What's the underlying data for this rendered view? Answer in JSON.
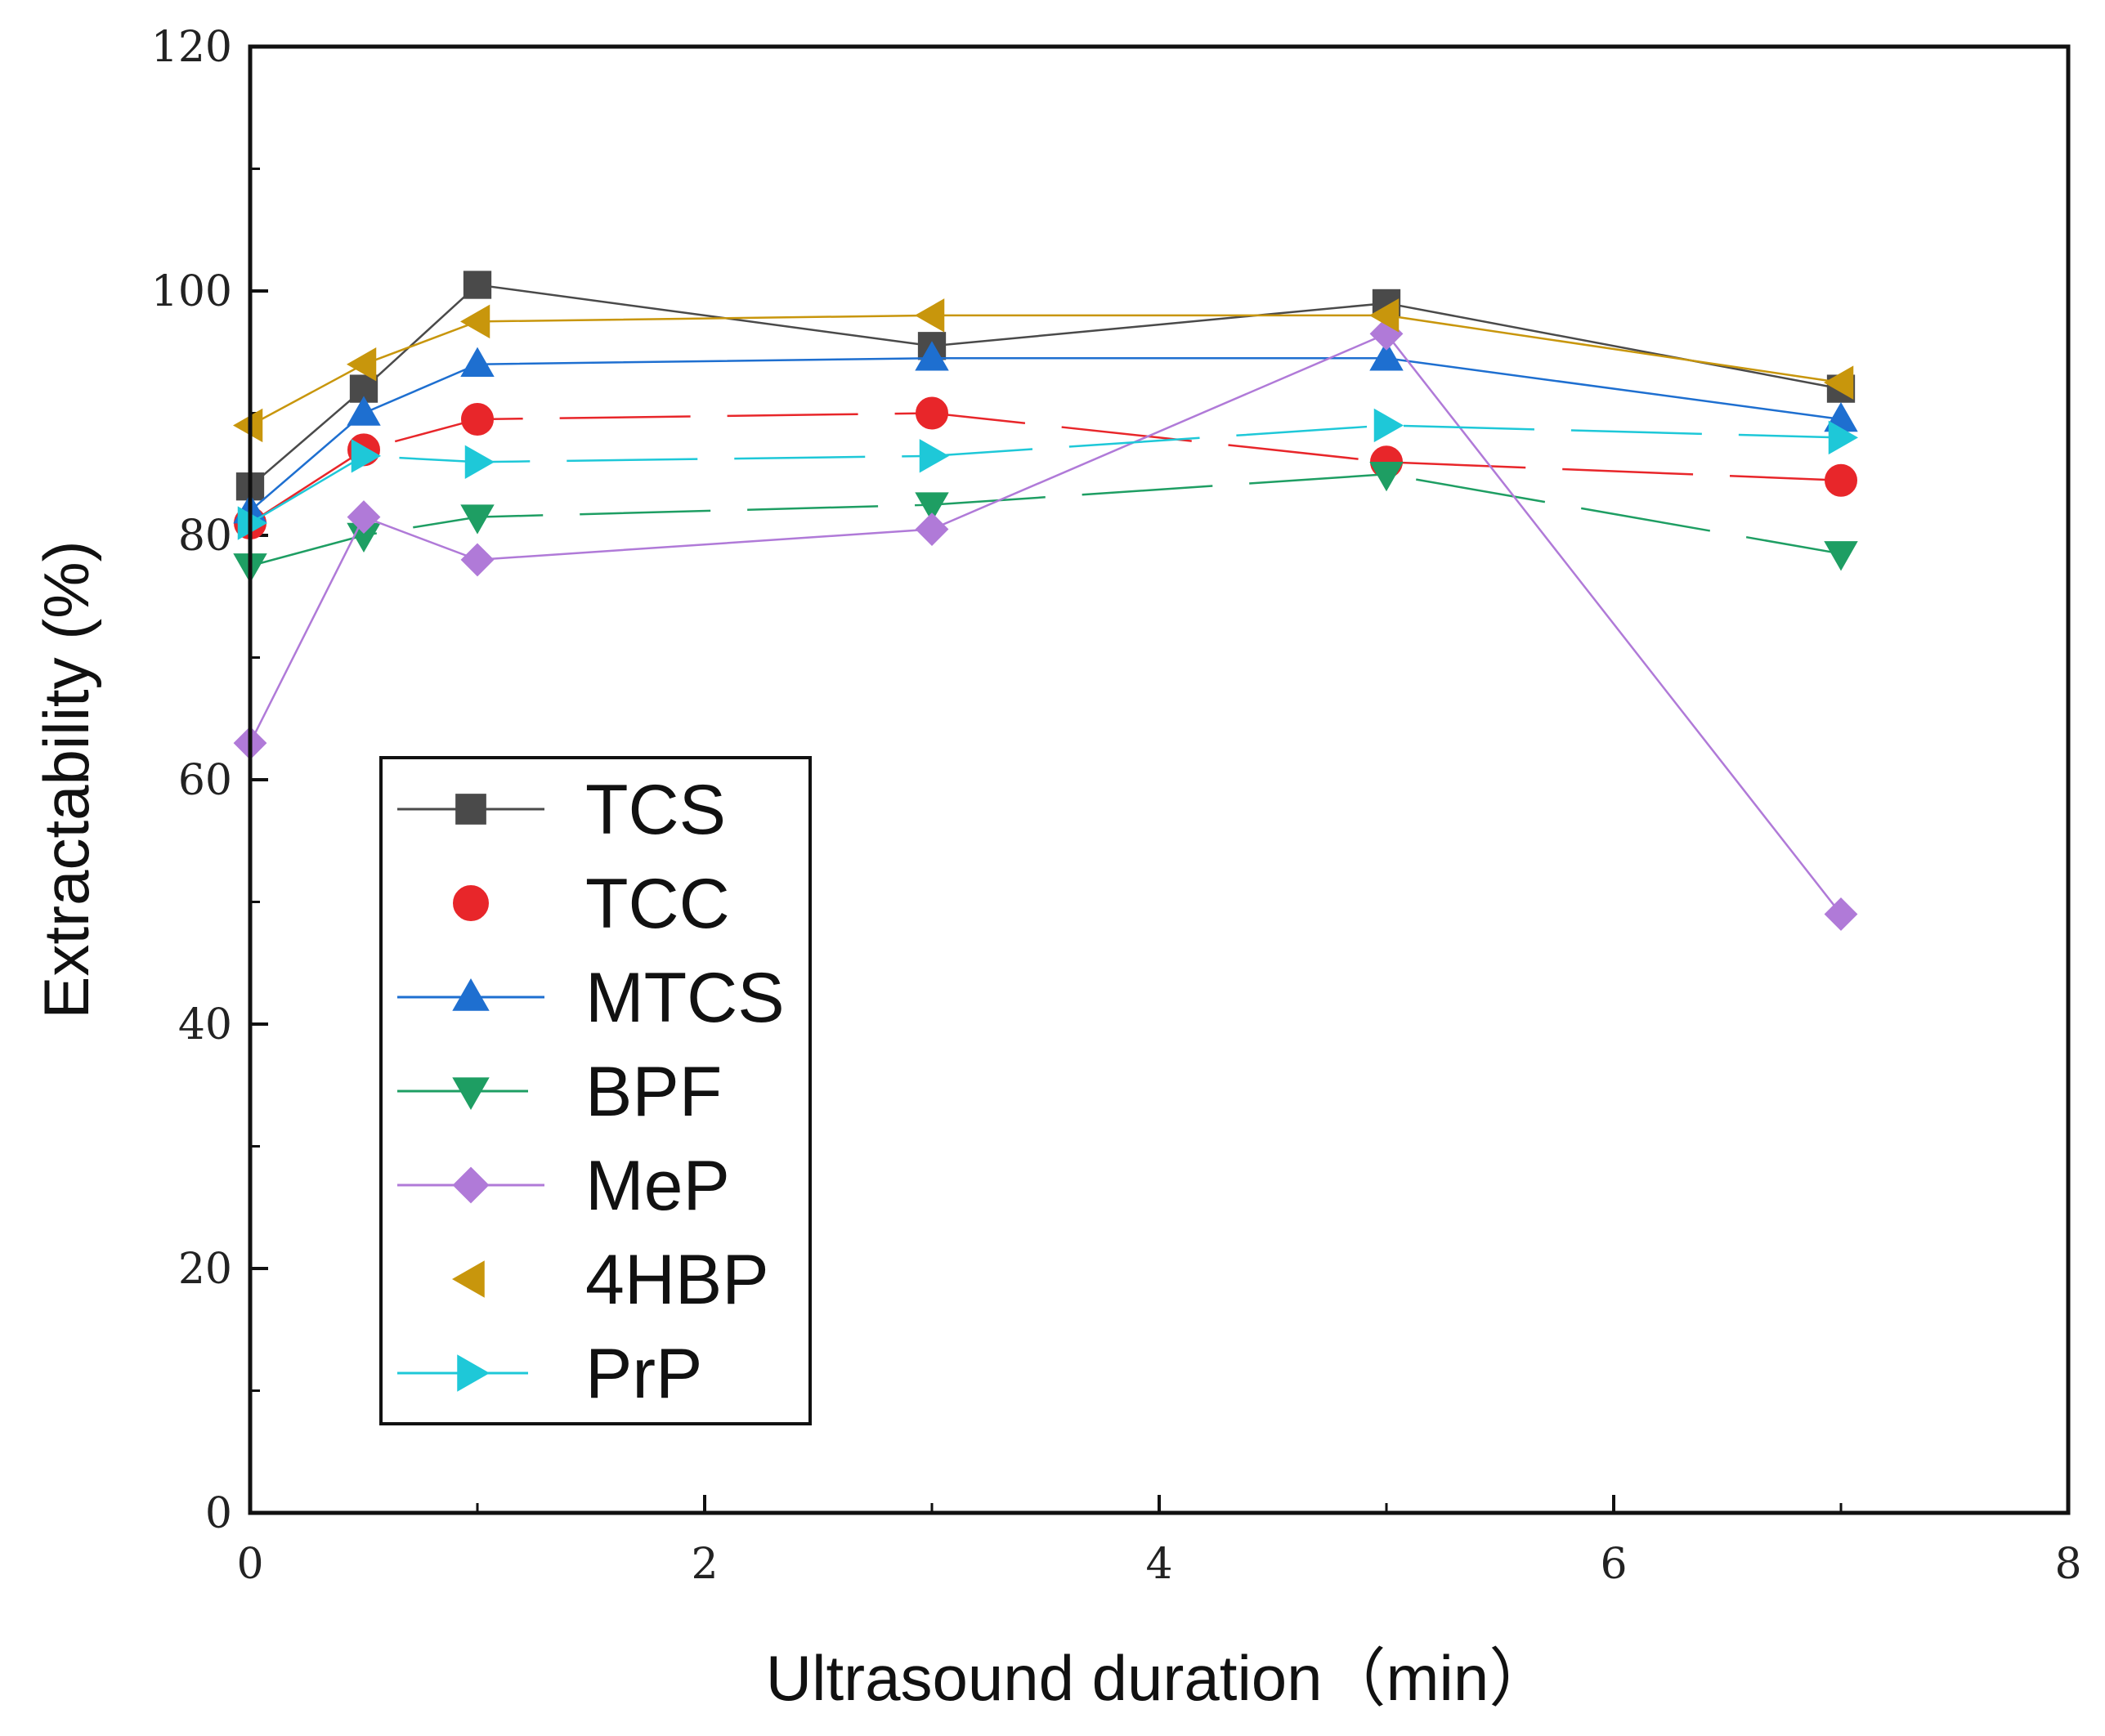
{
  "chart_data": {
    "type": "line",
    "title": "",
    "xlabel": "Ultrasound duration（min）",
    "ylabel": "Extractability (%)",
    "xlim": [
      0,
      8
    ],
    "ylim": [
      0,
      120
    ],
    "xticks": [
      0,
      2,
      4,
      6,
      8
    ],
    "yticks": [
      0,
      20,
      40,
      60,
      80,
      100,
      120
    ],
    "grid": false,
    "legend_position": "lower-left",
    "x": [
      0,
      0.5,
      1,
      3,
      5,
      7
    ],
    "series": [
      {
        "name": "TCS",
        "marker": "square",
        "color": "#4a4a4a",
        "dash": "solid",
        "values": [
          84,
          92,
          100.5,
          95.5,
          99,
          92
        ]
      },
      {
        "name": "TCC",
        "marker": "circle",
        "color": "#e8262a",
        "dash": "long-dash",
        "values": [
          81,
          87,
          89.5,
          90,
          86,
          84.5
        ]
      },
      {
        "name": "MTCS",
        "marker": "triangle-up",
        "color": "#1e6fd0",
        "dash": "solid",
        "values": [
          82,
          90,
          94,
          94.5,
          94.5,
          89.5
        ]
      },
      {
        "name": "BPF",
        "marker": "triangle-down",
        "color": "#1e9e63",
        "dash": "long-dash",
        "values": [
          77.5,
          80,
          81.5,
          82.5,
          85,
          78.5
        ]
      },
      {
        "name": "MeP",
        "marker": "diamond",
        "color": "#b07ad8",
        "dash": "solid",
        "values": [
          63,
          81.5,
          78,
          80.5,
          96.5,
          49
        ]
      },
      {
        "name": "4HBP",
        "marker": "triangle-left",
        "color": "#c8960c",
        "dash": "solid",
        "values": [
          89,
          94,
          97.5,
          98,
          98,
          92.5
        ]
      },
      {
        "name": "PrP",
        "marker": "triangle-right",
        "color": "#1ec8d8",
        "dash": "long-dash",
        "values": [
          81,
          86.5,
          86,
          86.5,
          89,
          88
        ]
      }
    ]
  }
}
